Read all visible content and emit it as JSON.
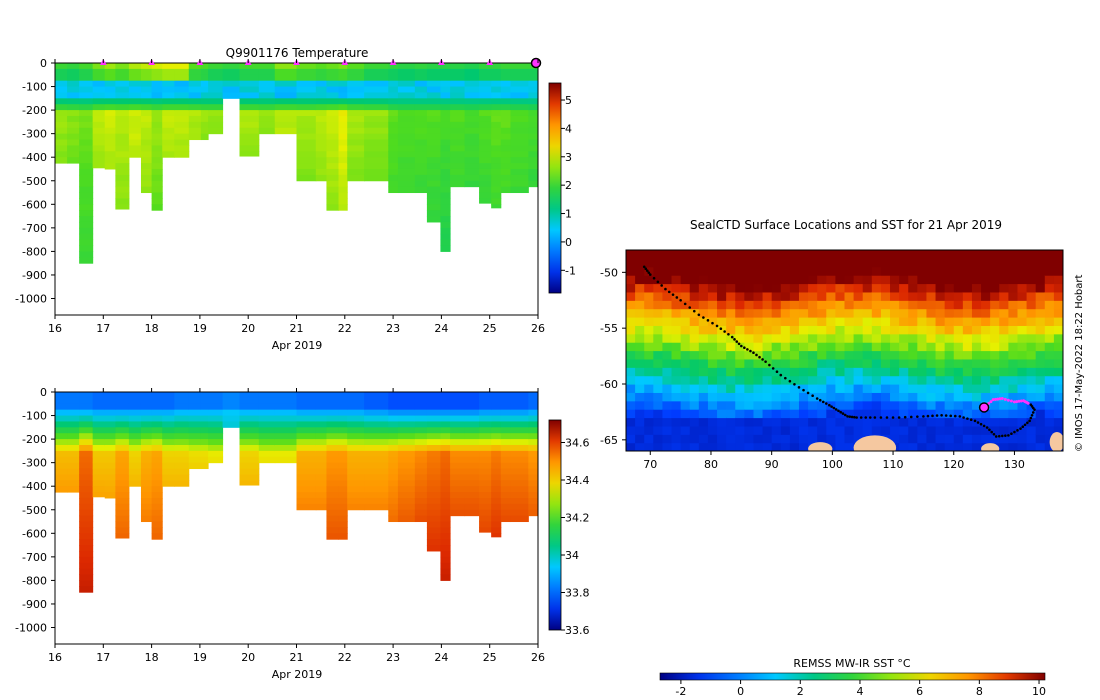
{
  "chart_data": [
    {
      "id": "temperature",
      "type": "heatmap",
      "title": "Q9901176  Temperature",
      "xlabel": "Apr 2019",
      "x_ticks": [
        "16",
        "17",
        "18",
        "19",
        "20",
        "21",
        "22",
        "23",
        "24",
        "25",
        "26"
      ],
      "x_range": [
        16,
        26
      ],
      "y_ticks": [
        "0",
        "-100",
        "-200",
        "-300",
        "-400",
        "-500",
        "-600",
        "-700",
        "-800",
        "-900",
        "-1000"
      ],
      "y_range": [
        -1070,
        0
      ],
      "colorbar_ticks": [
        "-1",
        "0",
        "1",
        "2",
        "3",
        "4",
        "5"
      ],
      "colorbar_range": [
        -1.8,
        5.6
      ],
      "marker_days": [
        17,
        18,
        19,
        20,
        21,
        22,
        23,
        24,
        25,
        26
      ],
      "marker_color": "#ff33ff",
      "profiles": [
        {
          "t": 16.0,
          "w": 0.25,
          "depth": 425,
          "surf": 1.9,
          "deep": 2.6
        },
        {
          "t": 16.25,
          "w": 0.25,
          "depth": 435,
          "surf": 1.8,
          "deep": 2.5
        },
        {
          "t": 16.5,
          "w": 0.28,
          "depth": 855,
          "surf": 2.0,
          "deep": 2.4
        },
        {
          "t": 16.78,
          "w": 0.25,
          "depth": 445,
          "surf": 2.4,
          "deep": 2.8
        },
        {
          "t": 17.03,
          "w": 0.22,
          "depth": 455,
          "surf": 2.6,
          "deep": 2.9
        },
        {
          "t": 17.25,
          "w": 0.28,
          "depth": 620,
          "surf": 2.4,
          "deep": 2.8
        },
        {
          "t": 17.53,
          "w": 0.25,
          "depth": 400,
          "surf": 2.7,
          "deep": 2.9
        },
        {
          "t": 17.78,
          "w": 0.22,
          "depth": 555,
          "surf": 2.8,
          "deep": 2.8
        },
        {
          "t": 18.0,
          "w": 0.22,
          "depth": 625,
          "surf": 2.9,
          "deep": 2.6
        },
        {
          "t": 18.22,
          "w": 0.25,
          "depth": 400,
          "surf": 3.0,
          "deep": 2.8
        },
        {
          "t": 18.47,
          "w": 0.3,
          "depth": 400,
          "surf": 3.0,
          "deep": 2.8
        },
        {
          "t": 18.77,
          "w": 0.25,
          "depth": 325,
          "surf": 2.2,
          "deep": 2.7
        },
        {
          "t": 19.02,
          "w": 0.15,
          "depth": 325,
          "surf": 2.1,
          "deep": 2.6
        },
        {
          "t": 19.17,
          "w": 0.3,
          "depth": 300,
          "surf": 1.9,
          "deep": 2.6
        },
        {
          "t": 19.47,
          "w": 0.35,
          "depth": 150,
          "surf": 1.8,
          "deep": 1.5
        },
        {
          "t": 19.82,
          "w": 0.4,
          "depth": 395,
          "surf": 2.0,
          "deep": 2.7
        },
        {
          "t": 20.22,
          "w": 0.33,
          "depth": 300,
          "surf": 2.0,
          "deep": 2.6
        },
        {
          "t": 20.55,
          "w": 0.45,
          "depth": 300,
          "surf": 2.5,
          "deep": 2.8
        },
        {
          "t": 21.0,
          "w": 0.4,
          "depth": 505,
          "surf": 2.3,
          "deep": 2.7
        },
        {
          "t": 21.4,
          "w": 0.22,
          "depth": 505,
          "surf": 2.2,
          "deep": 2.8
        },
        {
          "t": 21.62,
          "w": 0.25,
          "depth": 625,
          "surf": 2.3,
          "deep": 2.9
        },
        {
          "t": 21.87,
          "w": 0.18,
          "depth": 625,
          "surf": 2.4,
          "deep": 3.1
        },
        {
          "t": 22.05,
          "w": 0.35,
          "depth": 505,
          "surf": 2.2,
          "deep": 2.7
        },
        {
          "t": 22.4,
          "w": 0.5,
          "depth": 505,
          "surf": 1.9,
          "deep": 2.6
        },
        {
          "t": 22.9,
          "w": 0.2,
          "depth": 560,
          "surf": 1.8,
          "deep": 2.3
        },
        {
          "t": 23.1,
          "w": 0.35,
          "depth": 550,
          "surf": 1.7,
          "deep": 2.2
        },
        {
          "t": 23.45,
          "w": 0.25,
          "depth": 550,
          "surf": 1.8,
          "deep": 2.2
        },
        {
          "t": 23.7,
          "w": 0.28,
          "depth": 675,
          "surf": 1.7,
          "deep": 2.2
        },
        {
          "t": 23.98,
          "w": 0.2,
          "depth": 805,
          "surf": 1.7,
          "deep": 2.1
        },
        {
          "t": 24.18,
          "w": 0.3,
          "depth": 530,
          "surf": 1.7,
          "deep": 2.2
        },
        {
          "t": 24.48,
          "w": 0.3,
          "depth": 530,
          "surf": 1.6,
          "deep": 2.1
        },
        {
          "t": 24.78,
          "w": 0.25,
          "depth": 595,
          "surf": 1.8,
          "deep": 2.2
        },
        {
          "t": 25.03,
          "w": 0.2,
          "depth": 615,
          "surf": 1.8,
          "deep": 2.3
        },
        {
          "t": 25.23,
          "w": 0.2,
          "depth": 550,
          "surf": 1.9,
          "deep": 2.3
        },
        {
          "t": 25.43,
          "w": 0.37,
          "depth": 550,
          "surf": 1.9,
          "deep": 2.2
        },
        {
          "t": 25.8,
          "w": 0.2,
          "depth": 525,
          "surf": 1.9,
          "deep": 2.1
        }
      ]
    },
    {
      "id": "salinity",
      "type": "heatmap",
      "title": "",
      "xlabel": "Apr 2019",
      "x_ticks": [
        "16",
        "17",
        "18",
        "19",
        "20",
        "21",
        "22",
        "23",
        "24",
        "25",
        "26"
      ],
      "x_range": [
        16,
        26
      ],
      "y_ticks": [
        "0",
        "-100",
        "-200",
        "-300",
        "-400",
        "-500",
        "-600",
        "-700",
        "-800",
        "-900",
        "-1000"
      ],
      "y_range": [
        -1070,
        0
      ],
      "colorbar_ticks": [
        "33.6",
        "33.8",
        "34",
        "34.2",
        "34.4",
        "34.6"
      ],
      "colorbar_range": [
        33.6,
        34.72
      ],
      "profiles": [
        {
          "t": 16.0,
          "w": 0.25,
          "depth": 425,
          "surf": 33.82,
          "deep": 34.58
        },
        {
          "t": 16.25,
          "w": 0.25,
          "depth": 435,
          "surf": 33.82,
          "deep": 34.58
        },
        {
          "t": 16.5,
          "w": 0.28,
          "depth": 855,
          "surf": 33.82,
          "deep": 34.7
        },
        {
          "t": 16.78,
          "w": 0.25,
          "depth": 445,
          "surf": 33.8,
          "deep": 34.56
        },
        {
          "t": 17.03,
          "w": 0.22,
          "depth": 455,
          "surf": 33.8,
          "deep": 34.56
        },
        {
          "t": 17.25,
          "w": 0.28,
          "depth": 620,
          "surf": 33.8,
          "deep": 34.62
        },
        {
          "t": 17.53,
          "w": 0.25,
          "depth": 400,
          "surf": 33.8,
          "deep": 34.54
        },
        {
          "t": 17.78,
          "w": 0.22,
          "depth": 555,
          "surf": 33.8,
          "deep": 34.6
        },
        {
          "t": 18.0,
          "w": 0.22,
          "depth": 625,
          "surf": 33.8,
          "deep": 34.62
        },
        {
          "t": 18.22,
          "w": 0.25,
          "depth": 400,
          "surf": 33.8,
          "deep": 34.54
        },
        {
          "t": 18.47,
          "w": 0.3,
          "depth": 400,
          "surf": 33.82,
          "deep": 34.54
        },
        {
          "t": 18.77,
          "w": 0.25,
          "depth": 325,
          "surf": 33.82,
          "deep": 34.52
        },
        {
          "t": 19.02,
          "w": 0.15,
          "depth": 325,
          "surf": 33.82,
          "deep": 34.52
        },
        {
          "t": 19.17,
          "w": 0.3,
          "depth": 300,
          "surf": 33.82,
          "deep": 34.5
        },
        {
          "t": 19.47,
          "w": 0.35,
          "depth": 150,
          "surf": 33.84,
          "deep": 34.2
        },
        {
          "t": 19.82,
          "w": 0.4,
          "depth": 395,
          "surf": 33.82,
          "deep": 34.54
        },
        {
          "t": 20.22,
          "w": 0.33,
          "depth": 300,
          "surf": 33.82,
          "deep": 34.5
        },
        {
          "t": 20.55,
          "w": 0.45,
          "depth": 300,
          "surf": 33.82,
          "deep": 34.5
        },
        {
          "t": 21.0,
          "w": 0.4,
          "depth": 505,
          "surf": 33.8,
          "deep": 34.6
        },
        {
          "t": 21.4,
          "w": 0.22,
          "depth": 505,
          "surf": 33.8,
          "deep": 34.6
        },
        {
          "t": 21.62,
          "w": 0.25,
          "depth": 625,
          "surf": 33.8,
          "deep": 34.64
        },
        {
          "t": 21.87,
          "w": 0.18,
          "depth": 625,
          "surf": 33.8,
          "deep": 34.64
        },
        {
          "t": 22.05,
          "w": 0.35,
          "depth": 505,
          "surf": 33.8,
          "deep": 34.6
        },
        {
          "t": 22.4,
          "w": 0.5,
          "depth": 505,
          "surf": 33.78,
          "deep": 34.6
        },
        {
          "t": 22.9,
          "w": 0.2,
          "depth": 560,
          "surf": 33.76,
          "deep": 34.62
        },
        {
          "t": 23.1,
          "w": 0.35,
          "depth": 550,
          "surf": 33.76,
          "deep": 34.64
        },
        {
          "t": 23.45,
          "w": 0.25,
          "depth": 550,
          "surf": 33.76,
          "deep": 34.66
        },
        {
          "t": 23.7,
          "w": 0.28,
          "depth": 675,
          "surf": 33.76,
          "deep": 34.68
        },
        {
          "t": 23.98,
          "w": 0.2,
          "depth": 805,
          "surf": 33.76,
          "deep": 34.7
        },
        {
          "t": 24.18,
          "w": 0.3,
          "depth": 530,
          "surf": 33.76,
          "deep": 34.66
        },
        {
          "t": 24.48,
          "w": 0.3,
          "depth": 530,
          "surf": 33.76,
          "deep": 34.66
        },
        {
          "t": 24.78,
          "w": 0.25,
          "depth": 595,
          "surf": 33.78,
          "deep": 34.66
        },
        {
          "t": 25.03,
          "w": 0.2,
          "depth": 615,
          "surf": 33.78,
          "deep": 34.68
        },
        {
          "t": 25.23,
          "w": 0.2,
          "depth": 550,
          "surf": 33.78,
          "deep": 34.66
        },
        {
          "t": 25.43,
          "w": 0.37,
          "depth": 550,
          "surf": 33.78,
          "deep": 34.66
        },
        {
          "t": 25.8,
          "w": 0.2,
          "depth": 525,
          "surf": 33.8,
          "deep": 34.64
        }
      ]
    },
    {
      "id": "sst_map",
      "type": "heatmap",
      "title": "SealCTD Surface Locations and SST for 21 Apr 2019",
      "x_ticks": [
        "70",
        "80",
        "90",
        "100",
        "110",
        "120",
        "130"
      ],
      "x_range": [
        66,
        138
      ],
      "y_ticks": [
        "-50",
        "-55",
        "-60",
        "-65"
      ],
      "y_range": [
        -66,
        -48
      ],
      "colorbar_label": "REMSS MW-IR SST °C",
      "colorbar_ticks": [
        "-2",
        "0",
        "2",
        "4",
        "6",
        "8",
        "10"
      ],
      "colorbar_range": [
        -2.7,
        10.2
      ],
      "track": [
        [
          69.0,
          -49.5
        ],
        [
          70.0,
          -50.2
        ],
        [
          72.5,
          -51.5
        ],
        [
          75.0,
          -52.5
        ],
        [
          78.0,
          -53.8
        ],
        [
          81.0,
          -54.8
        ],
        [
          83.5,
          -55.8
        ],
        [
          85.0,
          -56.6
        ],
        [
          87.0,
          -57.2
        ],
        [
          89.0,
          -58.0
        ],
        [
          91.5,
          -59.2
        ],
        [
          94.5,
          -60.3
        ],
        [
          97.5,
          -61.3
        ],
        [
          99.5,
          -61.9
        ],
        [
          101.0,
          -62.4
        ],
        [
          102.5,
          -62.9
        ],
        [
          104.0,
          -63.0
        ],
        [
          107.0,
          -63.0
        ],
        [
          111.0,
          -63.0
        ],
        [
          115.0,
          -62.9
        ],
        [
          118.0,
          -62.8
        ],
        [
          121.0,
          -62.9
        ],
        [
          123.5,
          -63.3
        ],
        [
          125.5,
          -63.9
        ],
        [
          127.0,
          -64.7
        ],
        [
          129.0,
          -64.6
        ],
        [
          131.0,
          -64.0
        ],
        [
          132.5,
          -63.3
        ],
        [
          133.3,
          -62.3
        ],
        [
          132.5,
          -61.7
        ]
      ],
      "recent_track": [
        [
          125.0,
          -62.1
        ],
        [
          126.5,
          -61.4
        ],
        [
          128.0,
          -61.3
        ],
        [
          130.0,
          -61.6
        ],
        [
          131.5,
          -61.5
        ],
        [
          132.5,
          -61.8
        ]
      ],
      "current_position": [
        125.0,
        -62.1
      ],
      "track_color": "#000000",
      "recent_color": "#ff33ff",
      "land_color": "#f5c8a0",
      "side_label": "© IMOS 17-May-2022 18:22 Hobart"
    }
  ]
}
